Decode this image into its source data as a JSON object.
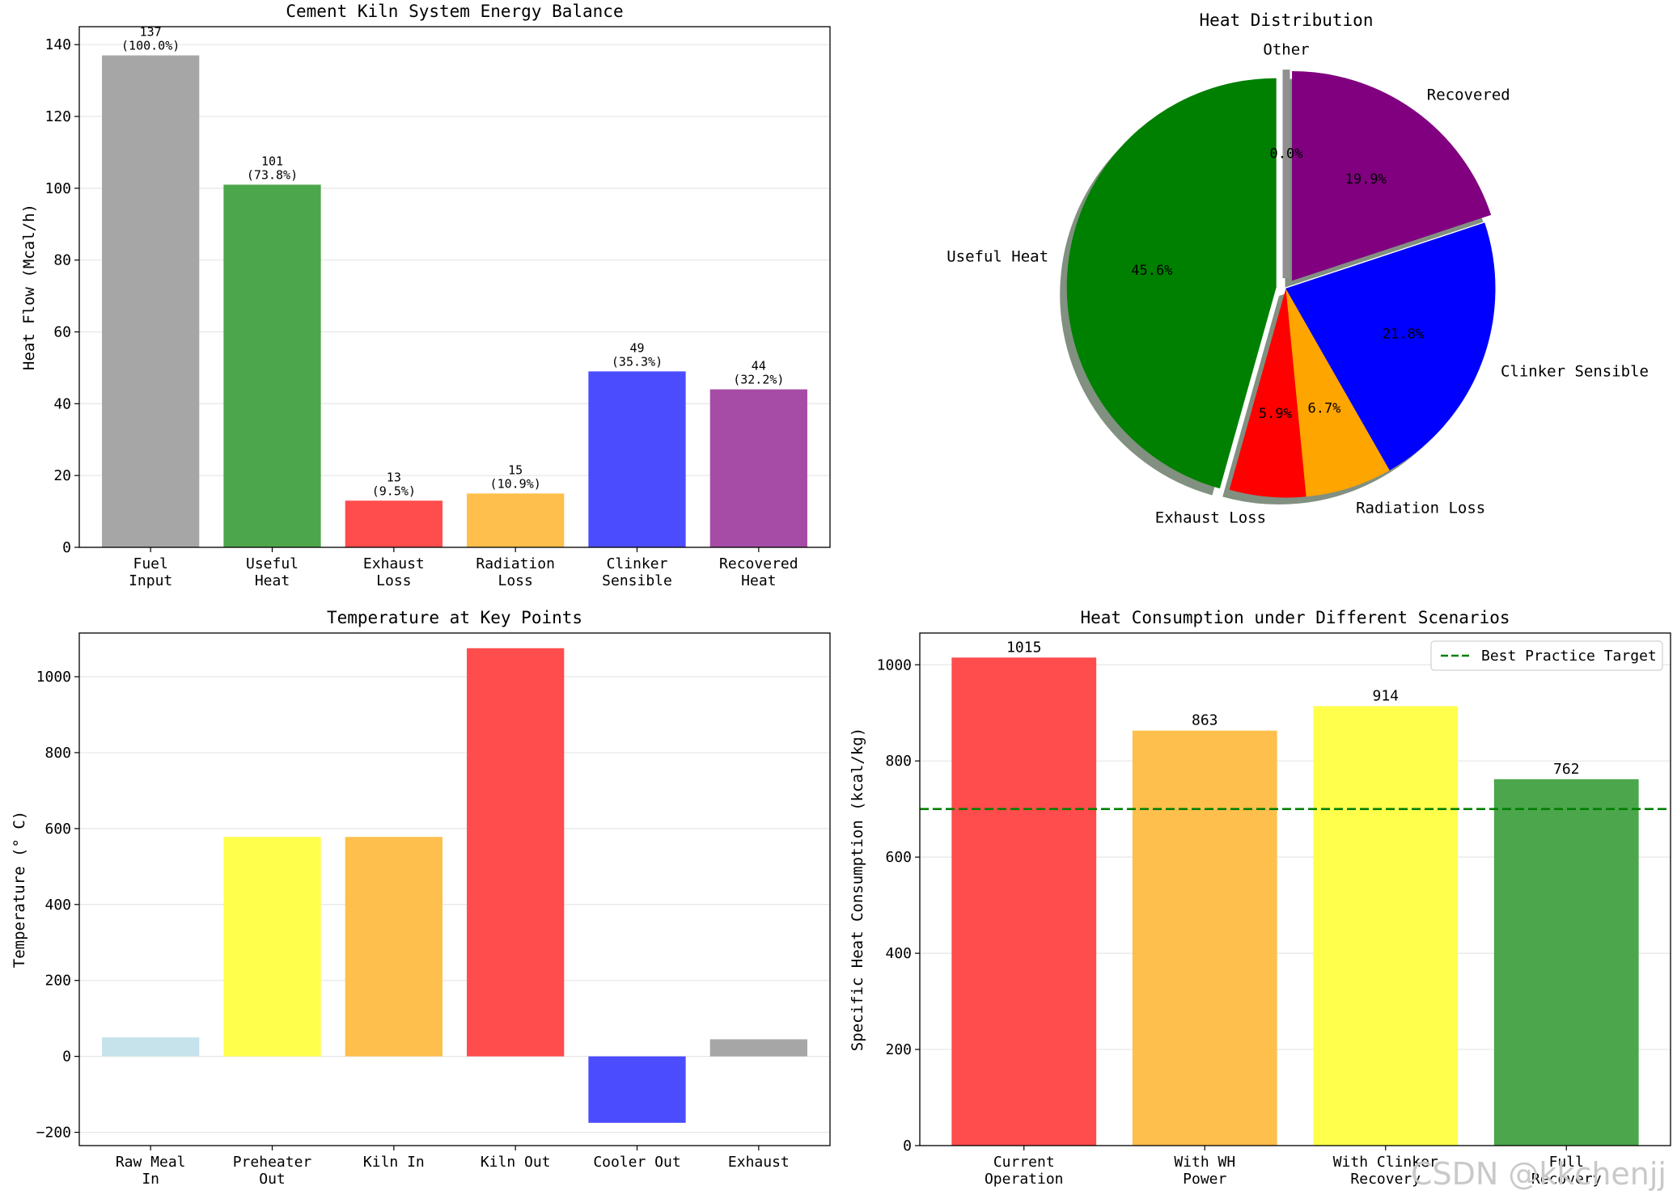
{
  "chart_data": [
    {
      "type": "bar",
      "title": "Cement Kiln System Energy Balance",
      "xlabel": "",
      "ylabel": "Heat Flow (Mcal/h)",
      "ylim": [
        0,
        145
      ],
      "yticks": [
        0,
        20,
        40,
        60,
        80,
        100,
        120,
        140
      ],
      "grid": "y",
      "categories": [
        "Fuel\nInput",
        "Useful\nHeat",
        "Exhaust\nLoss",
        "Radiation\nLoss",
        "Clinker\nSensible",
        "Recovered\nHeat"
      ],
      "values": [
        137,
        101,
        13,
        15,
        49,
        44
      ],
      "value_labels": [
        "137",
        "101",
        "13",
        "15",
        "49",
        "44"
      ],
      "pct_labels": [
        "(100.0%)",
        "(73.8%)",
        "(9.5%)",
        "(10.9%)",
        "(35.3%)",
        "(32.2%)"
      ],
      "colors": [
        "#a6a6a6",
        "#4ca64c",
        "#ff4c4c",
        "#ffbf4c",
        "#4c4cff",
        "#a64ca6"
      ]
    },
    {
      "type": "pie",
      "title": "Heat Distribution",
      "labels": [
        "Useful Heat",
        "Exhaust Loss",
        "Radiation Loss",
        "Clinker Sensible",
        "Recovered",
        "Other"
      ],
      "values": [
        45.6,
        5.9,
        6.7,
        21.8,
        19.9,
        0.0
      ],
      "pct_labels": [
        "45.6%",
        "5.9%",
        "6.7%",
        "21.8%",
        "19.9%",
        "0.0%"
      ],
      "colors": [
        "#008000",
        "#ff0000",
        "#ffa500",
        "#0000ff",
        "#800080",
        "#808080"
      ],
      "explode": [
        0.05,
        0,
        0,
        0,
        0.05,
        0.05
      ],
      "start_angle": 90,
      "shadow": true
    },
    {
      "type": "bar",
      "title": "Temperature at Key Points",
      "xlabel": "",
      "ylabel": "Temperature (° C)",
      "ylim": [
        -235,
        1115
      ],
      "yticks": [
        -200,
        0,
        200,
        400,
        600,
        800,
        1000
      ],
      "grid": "y",
      "categories": [
        "Raw Meal\nIn",
        "Preheater\nOut",
        "Kiln In",
        "Kiln Out",
        "Cooler Out",
        "Exhaust"
      ],
      "values": [
        50,
        578,
        578,
        1075,
        -175,
        45
      ],
      "colors": [
        "#c6e3ec",
        "#ffff4c",
        "#ffbf4c",
        "#ff4c4c",
        "#4c4cff",
        "#a6a6a6"
      ]
    },
    {
      "type": "bar",
      "title": "Heat Consumption under Different Scenarios",
      "xlabel": "",
      "ylabel": "Specific Heat Consumption (kcal/kg)",
      "ylim": [
        0,
        1066
      ],
      "yticks": [
        0,
        200,
        400,
        600,
        800,
        1000
      ],
      "grid": "y",
      "categories": [
        "Current\nOperation",
        "With WH\nPower",
        "With Clinker\nRecovery",
        "Full\nRecovery"
      ],
      "values": [
        1015,
        863,
        914,
        762
      ],
      "value_labels": [
        "1015",
        "863",
        "914",
        "762"
      ],
      "colors": [
        "#ff4c4c",
        "#ffbf4c",
        "#ffff4c",
        "#4ca64c"
      ],
      "reference_line": {
        "value": 700,
        "label": "Best Practice Target",
        "color": "#008000",
        "style": "dashed"
      },
      "legend": "top-right"
    }
  ],
  "watermark": "CSDN @kkchenjj"
}
